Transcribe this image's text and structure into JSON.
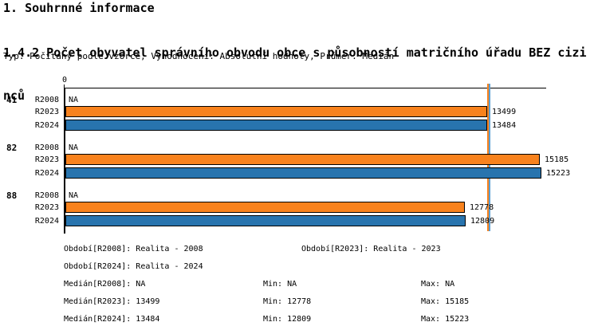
{
  "header": {
    "section_title": "1. Souhrnné informace",
    "indicator_title_lines": [
      "1.4.2 Počet obyvatel správního obvodu obce s působností matričního úřadu BEZ cizi",
      "nců"
    ],
    "indicator_title_full": "1.4.2 Počet obyvatel správního obvodu obce s působností matričního úřadu BEZ cizinců",
    "meta_line": "Typ: Počítaný podle vzorce, Vyhodnocení: Absolutní hodnoty, Průměr: Medián"
  },
  "chart_data": {
    "type": "bar",
    "orientation": "horizontal",
    "title": "1.4.2 Počet obyvatel správního obvodu obce s působností matričního úřadu BEZ cizinců",
    "xlabel": "",
    "ylabel": "",
    "xlim": [
      0,
      15300
    ],
    "grid": false,
    "axis": {
      "zero_label": "0"
    },
    "categories": [
      "41",
      "82",
      "88"
    ],
    "series": [
      {
        "name": "R2008",
        "values": [
          null,
          null,
          null
        ],
        "color": null
      },
      {
        "name": "R2023",
        "values": [
          13499,
          15185,
          12778
        ],
        "color": "#F8821D"
      },
      {
        "name": "R2024",
        "values": [
          13484,
          15223,
          12809
        ],
        "color": "#2874AE"
      }
    ],
    "groups": [
      {
        "label": "41",
        "bars": [
          {
            "series": "R2008",
            "value": null,
            "display": "NA"
          },
          {
            "series": "R2023",
            "value": 13499,
            "display": "13499"
          },
          {
            "series": "R2024",
            "value": 13484,
            "display": "13484"
          }
        ]
      },
      {
        "label": "82",
        "bars": [
          {
            "series": "R2008",
            "value": null,
            "display": "NA"
          },
          {
            "series": "R2023",
            "value": 15185,
            "display": "15185"
          },
          {
            "series": "R2024",
            "value": 15223,
            "display": "15223"
          }
        ]
      },
      {
        "label": "88",
        "bars": [
          {
            "series": "R2008",
            "value": null,
            "display": "NA"
          },
          {
            "series": "R2023",
            "value": 12778,
            "display": "12778"
          },
          {
            "series": "R2024",
            "value": 12809,
            "display": "12809"
          }
        ]
      }
    ],
    "series_colors": {
      "R2023": "#F8821D",
      "R2024": "#2874AE"
    },
    "median_lines": [
      {
        "series": "R2023",
        "value": 13499,
        "color": "#F8821D"
      },
      {
        "series": "R2024",
        "value": 13484,
        "color": "#5B9FD4"
      }
    ]
  },
  "legend": {
    "periods": [
      {
        "label": "Období[R2008]:",
        "value": "Realita - 2008"
      },
      {
        "label": "Období[R2023]:",
        "value": "Realita - 2023"
      },
      {
        "label": "Období[R2024]:",
        "value": "Realita - 2024"
      }
    ],
    "stats": [
      {
        "median_label": "Medián[R2008]:",
        "median_value": "NA",
        "min_label": "Min:",
        "min_value": "NA",
        "max_label": "Max:",
        "max_value": "NA"
      },
      {
        "median_label": "Medián[R2023]:",
        "median_value": "13499",
        "min_label": "Min:",
        "min_value": "12778",
        "max_label": "Max:",
        "max_value": "15185"
      },
      {
        "median_label": "Medián[R2024]:",
        "median_value": "13484",
        "min_label": "Min:",
        "min_value": "12809",
        "max_label": "Max:",
        "max_value": "15223"
      }
    ]
  },
  "colors": {
    "background": "#FFFFFF",
    "text": "#000000",
    "axis": "#000000",
    "bar_border": "#000000",
    "orange": "#F8821D",
    "blue": "#2874AE",
    "median_orange": "#F8821D",
    "median_blue": "#5B9FD4"
  }
}
